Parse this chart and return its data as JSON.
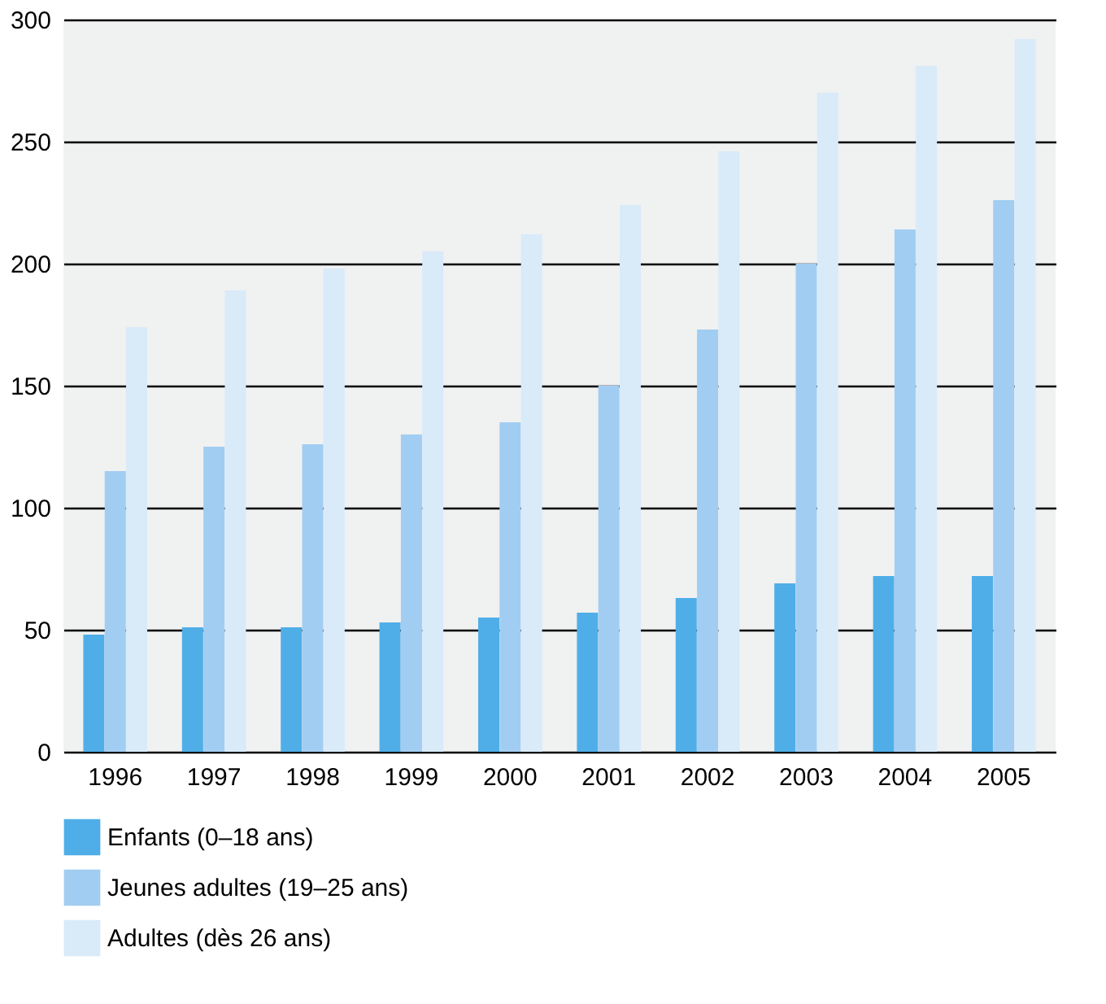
{
  "chart_data": {
    "type": "bar",
    "categories": [
      "1996",
      "1997",
      "1998",
      "1999",
      "2000",
      "2001",
      "2002",
      "2003",
      "2004",
      "2005"
    ],
    "series": [
      {
        "name": "Enfants (0–18 ans)",
        "color": "#4faee8",
        "values": [
          48,
          51,
          51,
          53,
          55,
          57,
          63,
          69,
          72,
          72
        ]
      },
      {
        "name": "Jeunes adultes (19–25 ans)",
        "color": "#a1cdf2",
        "values": [
          115,
          125,
          126,
          130,
          135,
          150,
          173,
          200,
          214,
          226
        ]
      },
      {
        "name": "Adultes (dès 26 ans)",
        "color": "#d9eaf9",
        "values": [
          174,
          189,
          198,
          205,
          212,
          224,
          246,
          270,
          281,
          292
        ]
      }
    ],
    "ylim": [
      0,
      300
    ],
    "yticks": [
      0,
      50,
      100,
      150,
      200,
      250,
      300
    ],
    "grid": "y",
    "legend": "bottom"
  }
}
